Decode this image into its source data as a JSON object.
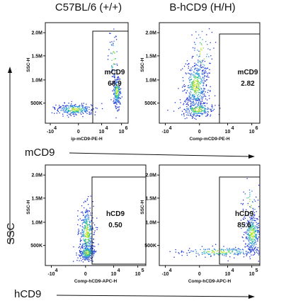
{
  "column_titles": [
    "C57BL/6 (+/+)",
    "B-hCD9 (H/H)"
  ],
  "row_labels": [
    "mCD9",
    "hCD9"
  ],
  "ssc_label": "SSC",
  "colors": {
    "axis": "#111111",
    "dots": [
      "#1a2fd6",
      "#2f6fe0",
      "#2aa0d8",
      "#36c48a",
      "#7fd84a",
      "#c9e63a"
    ]
  },
  "chart_data": [
    {
      "type": "scatter",
      "row": 0,
      "col": 0,
      "ylabel": "SSC-H",
      "xlabel": "ip-mCD9-PE-H",
      "x_ticks": [
        "-10",
        "4",
        "0",
        "10",
        "4",
        "10",
        "6"
      ],
      "y_ticks": [
        "2.0M",
        "1.5M",
        "1.0M",
        "500K"
      ],
      "gate": {
        "name": "mCD9",
        "percent": "68.9"
      }
    },
    {
      "type": "scatter",
      "row": 0,
      "col": 1,
      "ylabel": "SSC-H",
      "xlabel": "Comp-mCD9-PE-H",
      "x_ticks": [
        "-10",
        "4",
        "0",
        "10",
        "4",
        "10",
        "6"
      ],
      "y_ticks": [
        "2.0M",
        "1.5M",
        "1.0M",
        "500K"
      ],
      "gate": {
        "name": "mCD9",
        "percent": "2.82"
      }
    },
    {
      "type": "scatter",
      "row": 1,
      "col": 0,
      "ylabel": "SSC-H",
      "xlabel": "Comp-hCD9-APC-H",
      "x_ticks": [
        "-10",
        "4",
        "0",
        "10",
        "4",
        "10",
        "5"
      ],
      "y_ticks": [
        "2.0M",
        "1.5M",
        "1.0M",
        "500K"
      ],
      "gate": {
        "name": "hCD9",
        "percent": "0.50"
      }
    },
    {
      "type": "scatter",
      "row": 1,
      "col": 1,
      "ylabel": "SSC-H",
      "xlabel": "Comp-hCD9-APC-H",
      "x_ticks": [
        "-10",
        "4",
        "0",
        "10",
        "4",
        "10",
        "5"
      ],
      "y_ticks": [
        "2.0M",
        "1.5M",
        "1.0M",
        "500K"
      ],
      "gate": {
        "name": "hCD9",
        "percent": "85.6"
      }
    }
  ]
}
